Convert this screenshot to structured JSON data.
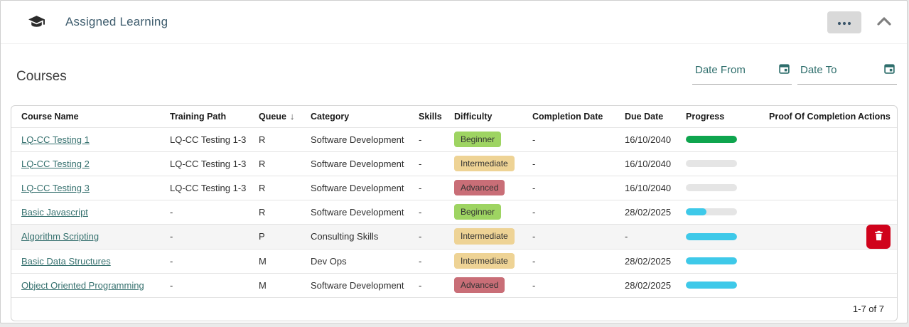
{
  "header": {
    "title": "Assigned Learning"
  },
  "section": {
    "title": "Courses",
    "date_from_label": "Date From",
    "date_to_label": "Date To"
  },
  "table": {
    "columns": [
      "Course Name",
      "Training Path",
      "Queue",
      "Category",
      "Skills",
      "Difficulty",
      "Completion Date",
      "Due Date",
      "Progress",
      "Proof Of Completion",
      "Actions"
    ],
    "sorted_column": "Queue",
    "sort_indicator": "↓",
    "rows": [
      {
        "course_name": "LQ-CC Testing 1",
        "training_path": "LQ-CC Testing 1-3",
        "queue": "R",
        "category": "Software Development",
        "skills": "-",
        "difficulty": "Beginner",
        "completion_date": "-",
        "due_date": "16/10/2040",
        "progress_percent": 100,
        "progress_color": "green",
        "proof_of_completion": "",
        "has_delete_action": false,
        "highlighted": false
      },
      {
        "course_name": "LQ-CC Testing 2",
        "training_path": "LQ-CC Testing 1-3",
        "queue": "R",
        "category": "Software Development",
        "skills": "-",
        "difficulty": "Intermediate",
        "completion_date": "-",
        "due_date": "16/10/2040",
        "progress_percent": 0,
        "progress_color": "none",
        "proof_of_completion": "",
        "has_delete_action": false,
        "highlighted": false
      },
      {
        "course_name": "LQ-CC Testing 3",
        "training_path": "LQ-CC Testing 1-3",
        "queue": "R",
        "category": "Software Development",
        "skills": "-",
        "difficulty": "Advanced",
        "completion_date": "-",
        "due_date": "16/10/2040",
        "progress_percent": 0,
        "progress_color": "none",
        "proof_of_completion": "",
        "has_delete_action": false,
        "highlighted": false
      },
      {
        "course_name": "Basic Javascript",
        "training_path": "-",
        "queue": "R",
        "category": "Software Development",
        "skills": "-",
        "difficulty": "Beginner",
        "completion_date": "-",
        "due_date": "28/02/2025",
        "progress_percent": 40,
        "progress_color": "blue",
        "proof_of_completion": "",
        "has_delete_action": false,
        "highlighted": false
      },
      {
        "course_name": "Algorithm Scripting",
        "training_path": "-",
        "queue": "P",
        "category": "Consulting Skills",
        "skills": "-",
        "difficulty": "Intermediate",
        "completion_date": "-",
        "due_date": "-",
        "progress_percent": 100,
        "progress_color": "blue",
        "proof_of_completion": "",
        "has_delete_action": true,
        "highlighted": true
      },
      {
        "course_name": "Basic Data Structures",
        "training_path": "-",
        "queue": "M",
        "category": "Dev Ops",
        "skills": "-",
        "difficulty": "Intermediate",
        "completion_date": "-",
        "due_date": "28/02/2025",
        "progress_percent": 100,
        "progress_color": "blue",
        "proof_of_completion": "",
        "has_delete_action": false,
        "highlighted": false
      },
      {
        "course_name": "Object Oriented Programming",
        "training_path": "-",
        "queue": "M",
        "category": "Software Development",
        "skills": "-",
        "difficulty": "Advanced",
        "completion_date": "-",
        "due_date": "28/02/2025",
        "progress_percent": 100,
        "progress_color": "blue",
        "proof_of_completion": "",
        "has_delete_action": false,
        "highlighted": false
      }
    ],
    "pagination": "1-7 of 7"
  },
  "colors": {
    "progress_green": "#0ea54e",
    "progress_blue": "#3ec9e9",
    "progress_track": "#e5e5e5",
    "badge_beginner": "#9ed462",
    "badge_intermediate": "#eed395",
    "badge_advanced": "#c96e77",
    "link_teal": "#35706e",
    "accent_teal": "#2e6e6c",
    "delete_red": "#d0021b",
    "title_slate": "#3f5d6e"
  }
}
